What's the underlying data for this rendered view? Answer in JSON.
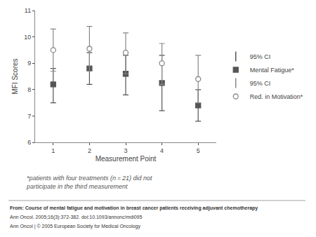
{
  "chart_data": {
    "type": "scatter",
    "x": [
      1,
      2,
      3,
      4,
      5
    ],
    "xlabel": "Measurement Point",
    "ylabel": "MFI Scores",
    "xlim": [
      0.5,
      5.5
    ],
    "xticks": [
      1,
      2,
      3,
      4,
      5
    ],
    "ylim": [
      6,
      11
    ],
    "yticks": [
      6,
      7,
      8,
      9,
      10,
      11
    ],
    "grid": false,
    "legend": "right",
    "series": [
      {
        "name": "Mental Fatigue*",
        "color": "#555555",
        "marker": "square",
        "values": [
          8.2,
          8.8,
          8.6,
          8.25,
          7.4
        ],
        "ci_upper": [
          8.8,
          9.4,
          9.3,
          9.3,
          8.0
        ],
        "ci_lower": [
          7.5,
          8.2,
          7.8,
          7.2,
          6.8
        ],
        "ci_name": "95% CI"
      },
      {
        "name": "Red. in Motivation*",
        "color": "#888888",
        "marker": "circle-open",
        "values": [
          9.5,
          9.55,
          9.4,
          9.0,
          8.4
        ],
        "ci_upper": [
          10.3,
          10.4,
          10.15,
          9.75,
          9.3
        ],
        "ci_lower": [
          8.7,
          8.7,
          8.6,
          8.2,
          7.5
        ],
        "ci_name": "95% CI"
      }
    ],
    "footnote": "*patients with four treatments (n = 21) did not\nparticipate in the third measurement",
    "source_lines": [
      "From: Course of mental fatigue and motivation in breast cancer patients receiving adjuvant chemotherapy",
      "Ann Oncol. 2005;16(3):372-382. doi:10.1093/annonc/mdi095",
      "Ann Oncol | © 2005 European Society for Medical Oncology"
    ]
  }
}
